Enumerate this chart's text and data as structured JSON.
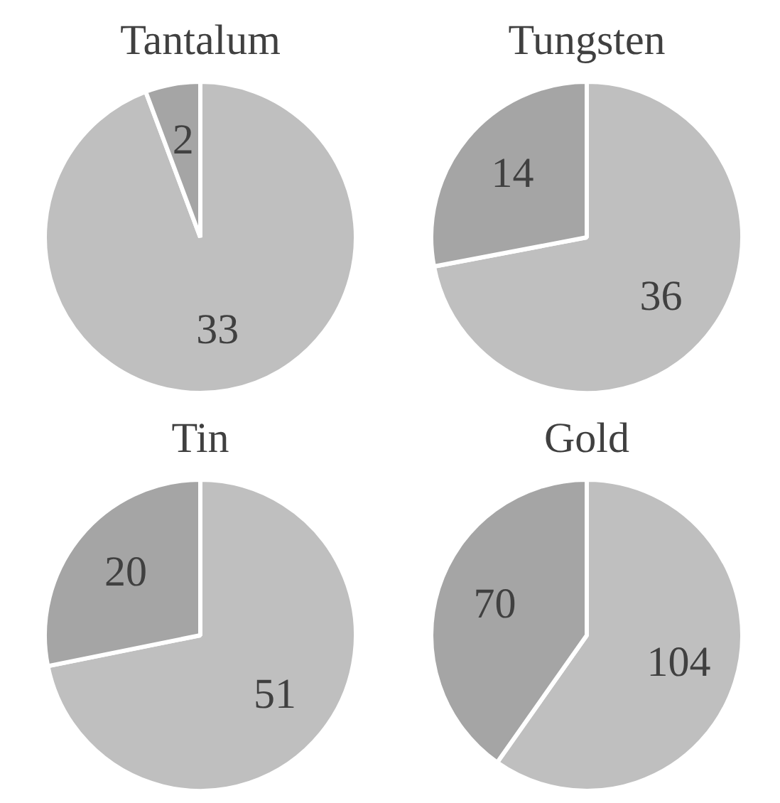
{
  "chart_data": [
    {
      "type": "pie",
      "title": "Tantalum",
      "categories": [
        null,
        null
      ],
      "values": [
        33,
        2
      ],
      "colors": [
        "#bfbfbf",
        "#a5a5a5"
      ],
      "data_labels": true
    },
    {
      "type": "pie",
      "title": "Tungsten",
      "categories": [
        null,
        null
      ],
      "values": [
        36,
        14
      ],
      "colors": [
        "#bfbfbf",
        "#a5a5a5"
      ],
      "data_labels": true
    },
    {
      "type": "pie",
      "title": "Tin",
      "categories": [
        null,
        null
      ],
      "values": [
        51,
        20
      ],
      "colors": [
        "#bfbfbf",
        "#a5a5a5"
      ],
      "data_labels": true
    },
    {
      "type": "pie",
      "title": "Gold",
      "categories": [
        null,
        null
      ],
      "values": [
        104,
        70
      ],
      "colors": [
        "#bfbfbf",
        "#a5a5a5"
      ],
      "data_labels": true
    }
  ]
}
